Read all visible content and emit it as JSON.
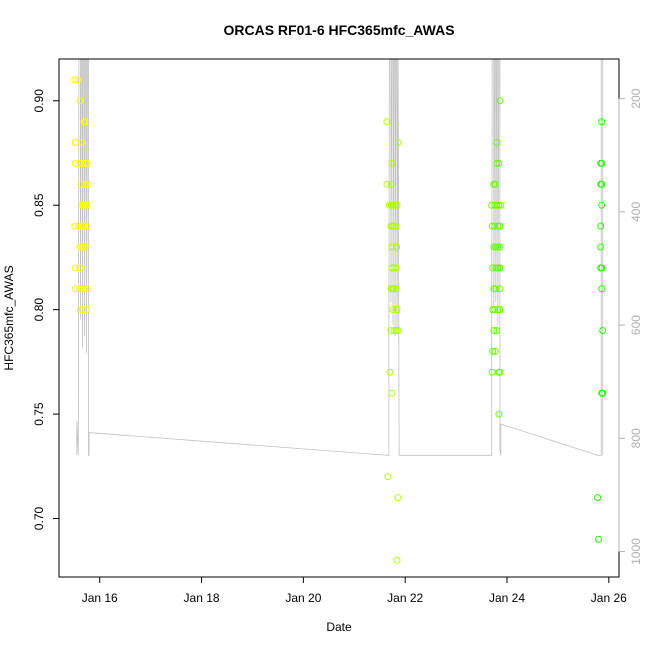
{
  "chart_data": {
    "type": "scatter",
    "title": "ORCAS RF01-6 HFC365mfc_AWAS",
    "xlabel": "Date",
    "ylabel": "HFC365mfc_AWAS",
    "x_unit": "days in January",
    "xlim": [
      15.2,
      26.2
    ],
    "ylim": [
      0.672,
      0.92
    ],
    "x_ticks": [
      {
        "value": 16,
        "label": "Jan 16"
      },
      {
        "value": 18,
        "label": "Jan 18"
      },
      {
        "value": 20,
        "label": "Jan 20"
      },
      {
        "value": 22,
        "label": "Jan 22"
      },
      {
        "value": 24,
        "label": "Jan 24"
      },
      {
        "value": 26,
        "label": "Jan 26"
      }
    ],
    "y_ticks": [
      0.7,
      0.75,
      0.8,
      0.85,
      0.9
    ],
    "y_tick_labels": [
      "0.70",
      "0.75",
      "0.80",
      "0.85",
      "0.90"
    ],
    "y2": {
      "label": "",
      "lim": [
        1045,
        130
      ],
      "reversed": true,
      "ticks": [
        200,
        400,
        600,
        800,
        1000
      ],
      "tick_labels": [
        "200",
        "400",
        "600",
        "800",
        "1000"
      ],
      "color": "#b0b0b0"
    },
    "grid": false,
    "legend": "none",
    "colors": {
      "yellow": "#ffff00",
      "chartreuse": "#aaff00",
      "light_green": "#66ff00",
      "green": "#22ff00",
      "altitude_line": "#c0c0c0"
    },
    "series": [
      {
        "color_key": "yellow",
        "points": [
          [
            15.51,
            0.91
          ],
          [
            15.57,
            0.91
          ],
          [
            15.61,
            0.9
          ],
          [
            15.52,
            0.88
          ],
          [
            15.52,
            0.87
          ],
          [
            15.65,
            0.88
          ],
          [
            15.69,
            0.89
          ],
          [
            15.71,
            0.89
          ],
          [
            15.61,
            0.87
          ],
          [
            15.66,
            0.87
          ],
          [
            15.72,
            0.87
          ],
          [
            15.75,
            0.87
          ],
          [
            15.63,
            0.86
          ],
          [
            15.7,
            0.86
          ],
          [
            15.73,
            0.86
          ],
          [
            15.77,
            0.86
          ],
          [
            15.65,
            0.85
          ],
          [
            15.68,
            0.85
          ],
          [
            15.7,
            0.85
          ],
          [
            15.72,
            0.85
          ],
          [
            15.74,
            0.85
          ],
          [
            15.51,
            0.84
          ],
          [
            15.59,
            0.84
          ],
          [
            15.62,
            0.84
          ],
          [
            15.64,
            0.84
          ],
          [
            15.67,
            0.84
          ],
          [
            15.69,
            0.84
          ],
          [
            15.74,
            0.84
          ],
          [
            15.61,
            0.83
          ],
          [
            15.64,
            0.83
          ],
          [
            15.68,
            0.83
          ],
          [
            15.72,
            0.83
          ],
          [
            15.52,
            0.82
          ],
          [
            15.61,
            0.82
          ],
          [
            15.52,
            0.81
          ],
          [
            15.61,
            0.81
          ],
          [
            15.64,
            0.81
          ],
          [
            15.67,
            0.81
          ],
          [
            15.7,
            0.81
          ],
          [
            15.75,
            0.81
          ],
          [
            15.62,
            0.8
          ],
          [
            15.66,
            0.8
          ],
          [
            15.73,
            0.8
          ]
        ]
      },
      {
        "color_key": "chartreuse",
        "points": [
          [
            21.64,
            0.89
          ],
          [
            21.86,
            0.88
          ],
          [
            21.74,
            0.87
          ],
          [
            21.64,
            0.86
          ],
          [
            21.72,
            0.86
          ],
          [
            21.69,
            0.85
          ],
          [
            21.73,
            0.85
          ],
          [
            21.76,
            0.85
          ],
          [
            21.8,
            0.85
          ],
          [
            21.84,
            0.85
          ],
          [
            21.72,
            0.84
          ],
          [
            21.75,
            0.84
          ],
          [
            21.78,
            0.84
          ],
          [
            21.82,
            0.84
          ],
          [
            21.74,
            0.83
          ],
          [
            21.83,
            0.83
          ],
          [
            21.74,
            0.82
          ],
          [
            21.78,
            0.82
          ],
          [
            21.82,
            0.82
          ],
          [
            21.72,
            0.81
          ],
          [
            21.74,
            0.81
          ],
          [
            21.76,
            0.81
          ],
          [
            21.78,
            0.81
          ],
          [
            21.82,
            0.81
          ],
          [
            21.76,
            0.8
          ],
          [
            21.84,
            0.8
          ],
          [
            21.72,
            0.79
          ],
          [
            21.78,
            0.79
          ],
          [
            21.82,
            0.79
          ],
          [
            21.86,
            0.79
          ],
          [
            21.7,
            0.77
          ],
          [
            21.74,
            0.76
          ],
          [
            21.66,
            0.72
          ],
          [
            21.86,
            0.71
          ],
          [
            21.84,
            0.68
          ]
        ]
      },
      {
        "color_key": "light_green",
        "points": [
          [
            23.86,
            0.9
          ],
          [
            23.8,
            0.88
          ],
          [
            23.8,
            0.87
          ],
          [
            23.84,
            0.87
          ],
          [
            23.74,
            0.86
          ],
          [
            23.77,
            0.86
          ],
          [
            23.7,
            0.85
          ],
          [
            23.76,
            0.85
          ],
          [
            23.8,
            0.85
          ],
          [
            23.84,
            0.85
          ],
          [
            23.88,
            0.85
          ],
          [
            23.71,
            0.84
          ],
          [
            23.76,
            0.84
          ],
          [
            23.82,
            0.84
          ],
          [
            23.86,
            0.84
          ],
          [
            23.74,
            0.83
          ],
          [
            23.78,
            0.83
          ],
          [
            23.82,
            0.83
          ],
          [
            23.86,
            0.83
          ],
          [
            23.72,
            0.82
          ],
          [
            23.78,
            0.82
          ],
          [
            23.82,
            0.82
          ],
          [
            23.86,
            0.82
          ],
          [
            23.74,
            0.81
          ],
          [
            23.78,
            0.81
          ],
          [
            23.86,
            0.81
          ],
          [
            23.72,
            0.8
          ],
          [
            23.76,
            0.8
          ],
          [
            23.82,
            0.8
          ],
          [
            23.86,
            0.8
          ],
          [
            23.74,
            0.79
          ],
          [
            23.8,
            0.79
          ],
          [
            23.72,
            0.78
          ],
          [
            23.77,
            0.78
          ],
          [
            23.71,
            0.77
          ],
          [
            23.84,
            0.77
          ],
          [
            23.86,
            0.77
          ],
          [
            23.84,
            0.75
          ]
        ]
      },
      {
        "color_key": "green",
        "points": [
          [
            25.86,
            0.89
          ],
          [
            25.84,
            0.87
          ],
          [
            25.86,
            0.87
          ],
          [
            25.84,
            0.86
          ],
          [
            25.86,
            0.86
          ],
          [
            25.86,
            0.85
          ],
          [
            25.84,
            0.84
          ],
          [
            25.84,
            0.83
          ],
          [
            25.84,
            0.82
          ],
          [
            25.86,
            0.82
          ],
          [
            25.86,
            0.81
          ],
          [
            25.88,
            0.79
          ],
          [
            25.86,
            0.76
          ],
          [
            25.88,
            0.76
          ],
          [
            25.78,
            0.71
          ],
          [
            25.8,
            0.69
          ]
        ]
      }
    ],
    "altitude_trace": {
      "axis": "y2",
      "color_key": "altitude_line",
      "segments": [
        [
          [
            15.55,
            830
          ],
          [
            15.55,
            770
          ],
          [
            15.58,
            830
          ],
          [
            15.59,
            130
          ],
          [
            15.62,
            130
          ],
          [
            15.62,
            590
          ],
          [
            15.64,
            130
          ],
          [
            15.66,
            130
          ],
          [
            15.66,
            640
          ],
          [
            15.68,
            130
          ],
          [
            15.7,
            130
          ],
          [
            15.7,
            620
          ],
          [
            15.72,
            130
          ],
          [
            15.74,
            130
          ],
          [
            15.74,
            650
          ],
          [
            15.76,
            130
          ],
          [
            15.78,
            130
          ],
          [
            15.78,
            830
          ],
          [
            15.79,
            830
          ],
          [
            15.79,
            790
          ],
          [
            21.66,
            830
          ],
          [
            21.68,
            830
          ],
          [
            21.68,
            610
          ],
          [
            21.69,
            130
          ],
          [
            21.72,
            130
          ],
          [
            21.72,
            560
          ],
          [
            21.74,
            130
          ],
          [
            21.76,
            130
          ],
          [
            21.76,
            600
          ],
          [
            21.78,
            130
          ],
          [
            21.8,
            130
          ],
          [
            21.8,
            620
          ],
          [
            21.82,
            130
          ],
          [
            21.84,
            130
          ],
          [
            21.84,
            610
          ],
          [
            21.86,
            130
          ],
          [
            21.88,
            830
          ],
          [
            23.7,
            830
          ],
          [
            23.7,
            590
          ],
          [
            23.71,
            130
          ],
          [
            23.74,
            130
          ],
          [
            23.74,
            570
          ],
          [
            23.76,
            130
          ],
          [
            23.78,
            130
          ],
          [
            23.78,
            560
          ],
          [
            23.8,
            130
          ],
          [
            23.82,
            130
          ],
          [
            23.82,
            600
          ],
          [
            23.84,
            130
          ],
          [
            23.86,
            130
          ],
          [
            23.86,
            820
          ],
          [
            23.88,
            830
          ],
          [
            23.88,
            775
          ],
          [
            25.78,
            830
          ],
          [
            25.85,
            830
          ],
          [
            25.85,
            130
          ],
          [
            25.88,
            130
          ],
          [
            25.88,
            830
          ]
        ]
      ]
    }
  }
}
